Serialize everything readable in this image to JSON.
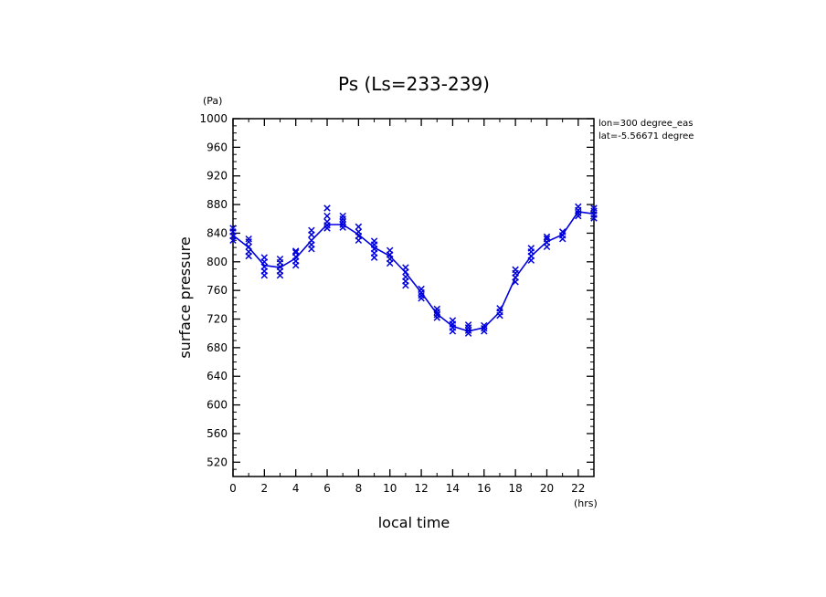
{
  "chart_data": {
    "type": "line",
    "title": "Ps (Ls=233-239)",
    "xlabel": "local time",
    "ylabel": "surface pressure",
    "x_unit": "(hrs)",
    "y_unit": "(Pa)",
    "annotations": [
      "lon=300 degree_eas",
      "lat=-5.56671 degree"
    ],
    "xlim": [
      0,
      23
    ],
    "ylim": [
      500,
      1000
    ],
    "x_ticks": [
      0,
      2,
      4,
      6,
      8,
      10,
      12,
      14,
      16,
      18,
      20,
      22
    ],
    "x_tick_labels": [
      "0",
      "2",
      "4",
      "6",
      "8",
      "10",
      "12",
      "14",
      "16",
      "18",
      "20",
      "22"
    ],
    "y_ticks": [
      520,
      560,
      600,
      640,
      680,
      720,
      760,
      800,
      840,
      880,
      920,
      960,
      1000
    ],
    "y_tick_labels": [
      "520",
      "560",
      "600",
      "640",
      "680",
      "720",
      "760",
      "800",
      "840",
      "880",
      "920",
      "960",
      "1000"
    ],
    "grid": false,
    "series": [
      {
        "color": "#0000dd",
        "marker": "none",
        "x": [
          0,
          1,
          2,
          3,
          4,
          5,
          6,
          7,
          8,
          9,
          10,
          11,
          12,
          13,
          14,
          15,
          16,
          17,
          18,
          19,
          20,
          21,
          22,
          23
        ],
        "values": [
          837,
          820,
          795,
          792,
          805,
          830,
          852,
          852,
          838,
          820,
          808,
          785,
          757,
          727,
          710,
          703,
          708,
          730,
          778,
          808,
          828,
          838,
          870,
          867
        ]
      },
      {
        "color": "#0000dd",
        "marker": "x",
        "points": [
          [
            0,
            830
          ],
          [
            0,
            836
          ],
          [
            0,
            842
          ],
          [
            0,
            847
          ],
          [
            1,
            808
          ],
          [
            1,
            814
          ],
          [
            1,
            821
          ],
          [
            1,
            828
          ],
          [
            1,
            832
          ],
          [
            2,
            781
          ],
          [
            2,
            787
          ],
          [
            2,
            793
          ],
          [
            2,
            800
          ],
          [
            2,
            806
          ],
          [
            3,
            781
          ],
          [
            3,
            787
          ],
          [
            3,
            793
          ],
          [
            3,
            799
          ],
          [
            3,
            804
          ],
          [
            4,
            795
          ],
          [
            4,
            801
          ],
          [
            4,
            807
          ],
          [
            4,
            813
          ],
          [
            4,
            815
          ],
          [
            5,
            818
          ],
          [
            5,
            824
          ],
          [
            5,
            830
          ],
          [
            5,
            838
          ],
          [
            5,
            844
          ],
          [
            6,
            847
          ],
          [
            6,
            851
          ],
          [
            6,
            856
          ],
          [
            6,
            864
          ],
          [
            6,
            875
          ],
          [
            7,
            848
          ],
          [
            7,
            852
          ],
          [
            7,
            856
          ],
          [
            7,
            860
          ],
          [
            7,
            864
          ],
          [
            8,
            830
          ],
          [
            8,
            836
          ],
          [
            8,
            842
          ],
          [
            8,
            849
          ],
          [
            9,
            806
          ],
          [
            9,
            812
          ],
          [
            9,
            818
          ],
          [
            9,
            824
          ],
          [
            9,
            829
          ],
          [
            10,
            798
          ],
          [
            10,
            804
          ],
          [
            10,
            810
          ],
          [
            10,
            816
          ],
          [
            11,
            767
          ],
          [
            11,
            773
          ],
          [
            11,
            779
          ],
          [
            11,
            786
          ],
          [
            11,
            792
          ],
          [
            12,
            749
          ],
          [
            12,
            753
          ],
          [
            12,
            757
          ],
          [
            12,
            762
          ],
          [
            13,
            722
          ],
          [
            13,
            726
          ],
          [
            13,
            730
          ],
          [
            13,
            734
          ],
          [
            14,
            703
          ],
          [
            14,
            708
          ],
          [
            14,
            713
          ],
          [
            14,
            718
          ],
          [
            15,
            700
          ],
          [
            15,
            704
          ],
          [
            15,
            708
          ],
          [
            15,
            712
          ],
          [
            16,
            703
          ],
          [
            16,
            707
          ],
          [
            16,
            711
          ],
          [
            17,
            725
          ],
          [
            17,
            730
          ],
          [
            17,
            735
          ],
          [
            18,
            772
          ],
          [
            18,
            778
          ],
          [
            18,
            784
          ],
          [
            18,
            789
          ],
          [
            19,
            802
          ],
          [
            19,
            808
          ],
          [
            19,
            814
          ],
          [
            19,
            819
          ],
          [
            20,
            821
          ],
          [
            20,
            827
          ],
          [
            20,
            832
          ],
          [
            20,
            835
          ],
          [
            21,
            832
          ],
          [
            21,
            837
          ],
          [
            21,
            842
          ],
          [
            22,
            864
          ],
          [
            22,
            868
          ],
          [
            22,
            872
          ],
          [
            22,
            877
          ],
          [
            23,
            861
          ],
          [
            23,
            866
          ],
          [
            23,
            871
          ],
          [
            23,
            875
          ]
        ]
      }
    ]
  }
}
